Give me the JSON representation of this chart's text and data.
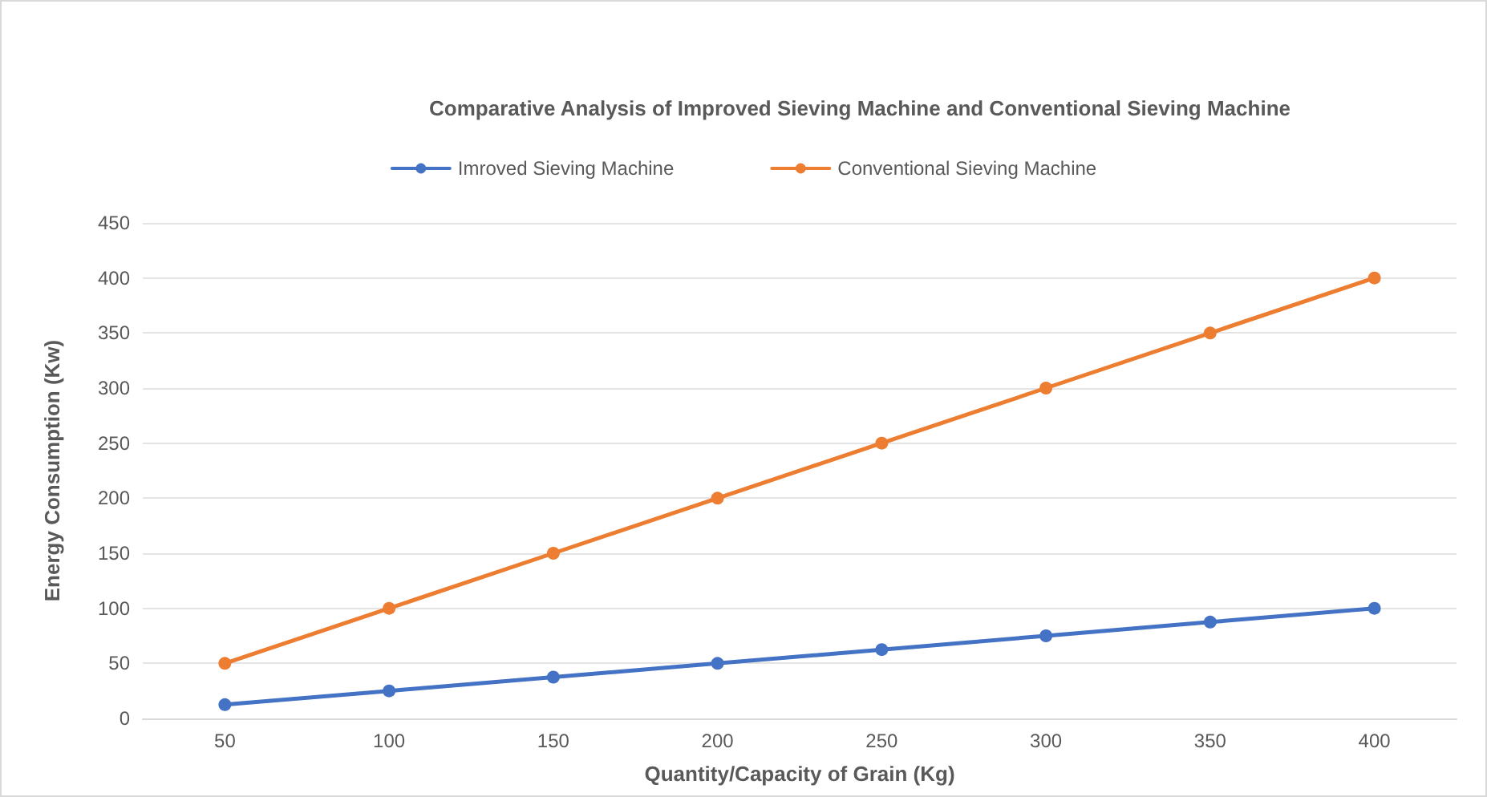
{
  "chart_data": {
    "type": "line",
    "title": "Comparative Analysis of Improved Sieving Machine and Conventional Sieving Machine",
    "xlabel": "Quantity/Capacity of Grain (Kg)",
    "ylabel": "Energy Consumption (Kw)",
    "categories": [
      "50",
      "100",
      "150",
      "200",
      "250",
      "300",
      "350",
      "400"
    ],
    "series": [
      {
        "name": "Imroved Sieving Machine",
        "color": "#4472c4",
        "values": [
          12.5,
          25,
          37.5,
          50,
          62.5,
          75,
          87.5,
          100
        ]
      },
      {
        "name": "Conventional Sieving Machine",
        "color": "#ed7d31",
        "values": [
          50,
          100,
          150,
          200,
          250,
          300,
          350,
          400
        ]
      }
    ],
    "ylim": [
      0,
      450
    ],
    "yticks": [
      0,
      50,
      100,
      150,
      200,
      250,
      300,
      350,
      400,
      450
    ],
    "grid": "y",
    "legend": "top",
    "marker": "circle",
    "line_style": "solid"
  }
}
